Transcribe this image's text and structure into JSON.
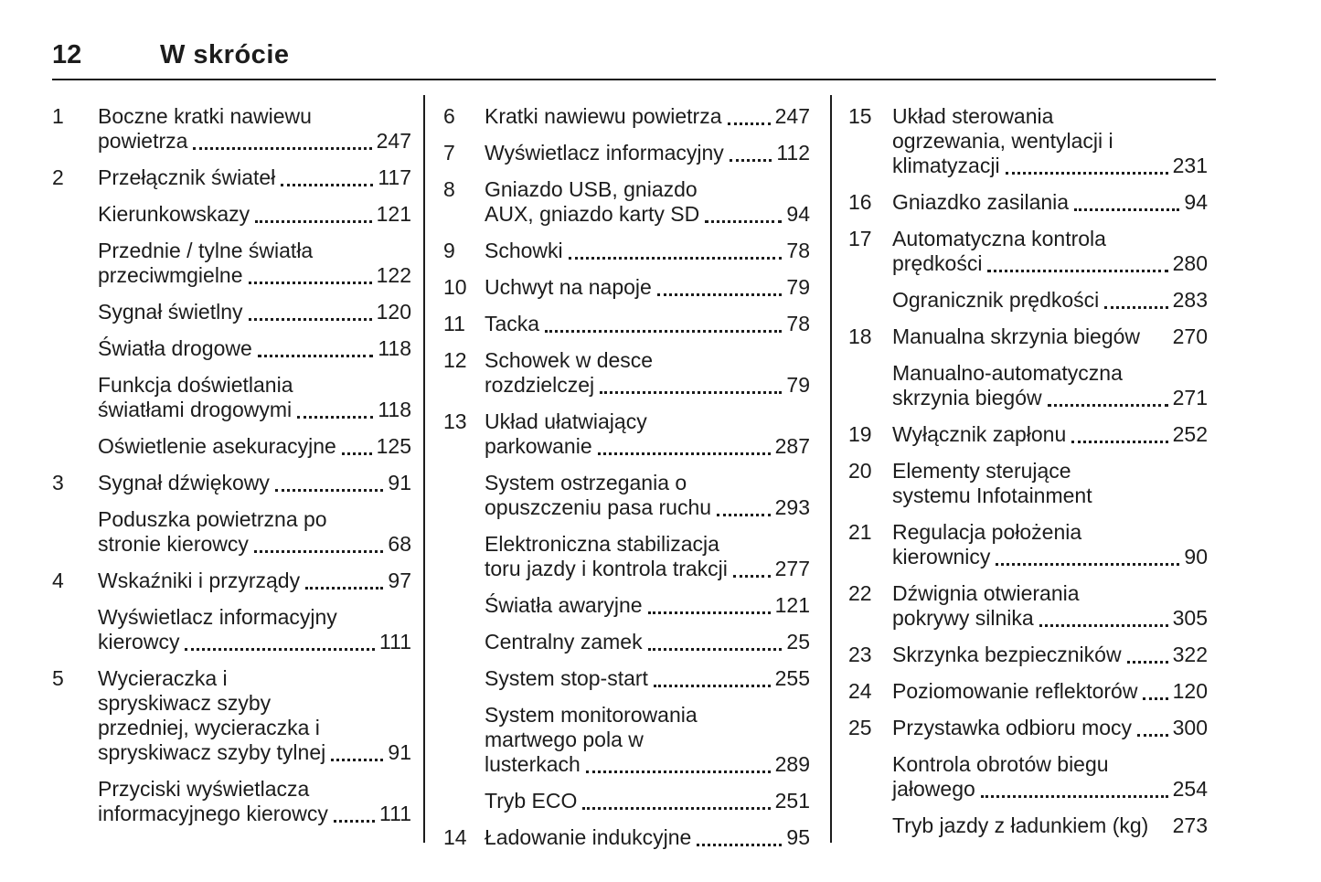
{
  "header": {
    "page_number": "12",
    "title": "W skrócie"
  },
  "columns": [
    {
      "entries": [
        {
          "num": "1",
          "label": "Boczne kratki nawiewu\npowietrza",
          "page": "247"
        },
        {
          "num": "2",
          "label": "Przełącznik świateł",
          "page": "117"
        },
        {
          "num": "",
          "label": "Kierunkowskazy",
          "page": "121"
        },
        {
          "num": "",
          "label": "Przednie / tylne światła\nprzeciwmgielne",
          "page": "122"
        },
        {
          "num": "",
          "label": "Sygnał świetlny",
          "page": "120"
        },
        {
          "num": "",
          "label": "Światła drogowe",
          "page": "118"
        },
        {
          "num": "",
          "label": "Funkcja doświetlania\nświatłami drogowymi",
          "page": "118"
        },
        {
          "num": "",
          "label": "Oświetlenie asekuracyjne",
          "page": "125"
        },
        {
          "num": "3",
          "label": "Sygnał dźwiękowy",
          "page": "91"
        },
        {
          "num": "",
          "label": "Poduszka powietrzna po\nstronie kierowcy",
          "page": "68"
        },
        {
          "num": "4",
          "label": "Wskaźniki i przyrządy",
          "page": "97"
        },
        {
          "num": "",
          "label": "Wyświetlacz informacyjny\nkierowcy",
          "page": "111"
        },
        {
          "num": "5",
          "label": "Wycieraczka i\nspryskiwacz szyby\nprzedniej, wycieraczka i\nspryskiwacz szyby tylnej",
          "page": "91"
        },
        {
          "num": "",
          "label": "Przyciski wyświetlacza\ninformacyjnego kierowcy",
          "page": "111"
        }
      ]
    },
    {
      "entries": [
        {
          "num": "6",
          "label": "Kratki nawiewu powietrza",
          "page": "247"
        },
        {
          "num": "7",
          "label": "Wyświetlacz informacyjny",
          "page": "112"
        },
        {
          "num": "8",
          "label": "Gniazdo USB, gniazdo\nAUX, gniazdo karty SD",
          "page": "94"
        },
        {
          "num": "9",
          "label": "Schowki",
          "page": "78"
        },
        {
          "num": "10",
          "label": "Uchwyt na napoje",
          "page": "79"
        },
        {
          "num": "11",
          "label": "Tacka",
          "page": "78"
        },
        {
          "num": "12",
          "label": "Schowek w desce\nrozdzielczej",
          "page": "79"
        },
        {
          "num": "13",
          "label": "Układ ułatwiający\nparkowanie",
          "page": "287"
        },
        {
          "num": "",
          "label": "System ostrzegania o\nopuszczeniu pasa ruchu",
          "page": "293"
        },
        {
          "num": "",
          "label": "Elektroniczna stabilizacja\ntoru jazdy i kontrola trakcji",
          "page": "277"
        },
        {
          "num": "",
          "label": "Światła awaryjne",
          "page": "121"
        },
        {
          "num": "",
          "label": "Centralny zamek",
          "page": "25"
        },
        {
          "num": "",
          "label": "System stop-start",
          "page": "255"
        },
        {
          "num": "",
          "label": "System monitorowania\nmartwego pola w\nlusterkach",
          "page": "289"
        },
        {
          "num": "",
          "label": "Tryb ECO",
          "page": "251"
        },
        {
          "num": "14",
          "label": "Ładowanie indukcyjne",
          "page": "95"
        }
      ]
    },
    {
      "entries": [
        {
          "num": "15",
          "label": "Układ sterowania\nogrzewania, wentylacji i\nklimatyzacji",
          "page": "231"
        },
        {
          "num": "16",
          "label": "Gniazdko zasilania",
          "page": "94"
        },
        {
          "num": "17",
          "label": "Automatyczna kontrola\nprędkości",
          "page": "280"
        },
        {
          "num": "",
          "label": "Ogranicznik prędkości",
          "page": "283"
        },
        {
          "num": "18",
          "label": "Manualna skrzynia biegów",
          "page": "270",
          "dots": false
        },
        {
          "num": "",
          "label": "Manualno-automatyczna\nskrzynia biegów",
          "page": "271"
        },
        {
          "num": "19",
          "label": "Wyłącznik zapłonu",
          "page": "252"
        },
        {
          "num": "20",
          "label": "Elementy sterujące\nsystemu Infotainment",
          "page": ""
        },
        {
          "num": "21",
          "label": "Regulacja położenia\nkierownicy",
          "page": "90"
        },
        {
          "num": "22",
          "label": "Dźwignia otwierania\npokrywy silnika",
          "page": "305"
        },
        {
          "num": "23",
          "label": "Skrzynka bezpieczników",
          "page": "322"
        },
        {
          "num": "24",
          "label": "Poziomowanie reflektorów",
          "page": "120"
        },
        {
          "num": "25",
          "label": "Przystawka odbioru mocy",
          "page": "300"
        },
        {
          "num": "",
          "label": "Kontrola obrotów biegu\njałowego",
          "page": "254"
        },
        {
          "num": "",
          "label": "Tryb jazdy z ładunkiem (kg)",
          "page": "273",
          "dots": false
        }
      ]
    }
  ]
}
